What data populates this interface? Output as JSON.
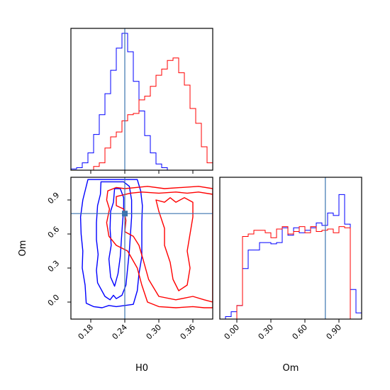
{
  "chart_data": {
    "type": "corner",
    "parameters": [
      "H0",
      "Om"
    ],
    "truth": {
      "H0": 0.24,
      "Om": 0.78,
      "color": "#3b75af"
    },
    "series": [
      {
        "color": "#0000ff"
      },
      {
        "color": "#ff0000"
      }
    ],
    "panels": {
      "hist_H0": {
        "type": "histogram",
        "xlim": [
          0.145,
          0.395
        ],
        "xticks": [
          0.18,
          0.24,
          0.3,
          0.36
        ],
        "ylim": [
          0,
          1.15
        ],
        "bin_edges": [
          0.145,
          0.155,
          0.165,
          0.175,
          0.185,
          0.195,
          0.205,
          0.215,
          0.225,
          0.235,
          0.245,
          0.255,
          0.265,
          0.275,
          0.285,
          0.295,
          0.305,
          0.315,
          0.325,
          0.335,
          0.345,
          0.355,
          0.365,
          0.375,
          0.385,
          0.395
        ],
        "counts": [
          [
            0.01,
            0.02,
            0.06,
            0.14,
            0.29,
            0.45,
            0.62,
            0.81,
            0.99,
            1.11,
            0.96,
            0.72,
            0.48,
            0.28,
            0.14,
            0.05,
            0.02,
            0,
            0,
            0,
            0,
            0,
            0,
            0,
            0
          ],
          [
            0,
            0,
            0,
            0,
            0.03,
            0.06,
            0.18,
            0.27,
            0.31,
            0.4,
            0.45,
            0.46,
            0.57,
            0.6,
            0.68,
            0.77,
            0.82,
            0.89,
            0.91,
            0.79,
            0.69,
            0.5,
            0.38,
            0.19,
            0.06
          ]
        ]
      },
      "hist_Om": {
        "type": "histogram",
        "xlim": [
          -0.15,
          1.1
        ],
        "xticks": [
          0.0,
          0.3,
          0.6,
          0.9
        ],
        "ylim": [
          0,
          1.15
        ],
        "bin_edges": [
          -0.15,
          -0.1,
          -0.05,
          0.0,
          0.05,
          0.1,
          0.15,
          0.2,
          0.25,
          0.3,
          0.35,
          0.4,
          0.45,
          0.5,
          0.55,
          0.6,
          0.65,
          0.7,
          0.75,
          0.8,
          0.85,
          0.9,
          0.95,
          1.0,
          1.05,
          1.1
        ],
        "counts": [
          [
            0,
            0.02,
            0.06,
            0.11,
            0.41,
            0.56,
            0.56,
            0.62,
            0.62,
            0.61,
            0.62,
            0.74,
            0.68,
            0.74,
            0.7,
            0.72,
            0.74,
            0.78,
            0.76,
            0.86,
            0.84,
            1.01,
            0.77,
            0.24,
            0.05
          ],
          [
            0,
            0,
            0,
            0.11,
            0.67,
            0.69,
            0.72,
            0.72,
            0.7,
            0.66,
            0.73,
            0.75,
            0.69,
            0.71,
            0.75,
            0.7,
            0.75,
            0.71,
            0.72,
            0.73,
            0.7,
            0.75,
            0.74,
            0,
            0
          ]
        ]
      },
      "contour_Om_vs_H0": {
        "type": "contour",
        "xlim": [
          0.145,
          0.395
        ],
        "ylim": [
          -0.15,
          1.1
        ],
        "xticks": [
          0.18,
          0.24,
          0.3,
          0.36
        ],
        "yticks": [
          0.0,
          0.3,
          0.6,
          0.9
        ],
        "xlabel": "H0",
        "ylabel": "Om",
        "contours": [
          {
            "series": 0,
            "points": [
              [
                0.175,
                1.08
              ],
              [
                0.171,
                1.0
              ],
              [
                0.166,
                0.9
              ],
              [
                0.162,
                0.75
              ],
              [
                0.163,
                0.6
              ],
              [
                0.166,
                0.45
              ],
              [
                0.165,
                0.3
              ],
              [
                0.17,
                0.15
              ],
              [
                0.172,
                -0.01
              ],
              [
                0.185,
                -0.04
              ],
              [
                0.2,
                -0.05
              ],
              [
                0.212,
                -0.03
              ],
              [
                0.225,
                -0.04
              ],
              [
                0.24,
                -0.03
              ],
              [
                0.255,
                -0.02
              ],
              [
                0.262,
                0.1
              ],
              [
                0.265,
                0.25
              ],
              [
                0.27,
                0.4
              ],
              [
                0.27,
                0.55
              ],
              [
                0.27,
                0.7
              ],
              [
                0.271,
                0.85
              ],
              [
                0.268,
                0.98
              ],
              [
                0.262,
                1.08
              ]
            ]
          },
          {
            "series": 0,
            "points": [
              [
                0.198,
                1.06
              ],
              [
                0.197,
                0.95
              ],
              [
                0.192,
                0.85
              ],
              [
                0.19,
                0.7
              ],
              [
                0.19,
                0.55
              ],
              [
                0.193,
                0.42
              ],
              [
                0.19,
                0.28
              ],
              [
                0.192,
                0.17
              ],
              [
                0.205,
                0.05
              ],
              [
                0.214,
                0.02
              ],
              [
                0.22,
                0.06
              ],
              [
                0.225,
                0.03
              ],
              [
                0.235,
                0.06
              ],
              [
                0.242,
                0.15
              ],
              [
                0.245,
                0.3
              ],
              [
                0.248,
                0.45
              ],
              [
                0.25,
                0.6
              ],
              [
                0.252,
                0.75
              ],
              [
                0.252,
                0.9
              ],
              [
                0.248,
                1.02
              ],
              [
                0.238,
                1.06
              ]
            ]
          },
          {
            "series": 0,
            "points": [
              [
                0.222,
                1.0
              ],
              [
                0.22,
                0.88
              ],
              [
                0.215,
                0.8
              ],
              [
                0.214,
                0.65
              ],
              [
                0.216,
                0.5
              ],
              [
                0.212,
                0.38
              ],
              [
                0.215,
                0.22
              ],
              [
                0.222,
                0.14
              ],
              [
                0.228,
                0.25
              ],
              [
                0.232,
                0.4
              ],
              [
                0.234,
                0.55
              ],
              [
                0.236,
                0.7
              ],
              [
                0.238,
                0.82
              ],
              [
                0.238,
                0.92
              ],
              [
                0.232,
                1.0
              ]
            ]
          },
          {
            "series": 1,
            "points": [
              [
                0.21,
                0.98
              ],
              [
                0.208,
                0.9
              ],
              [
                0.213,
                0.82
              ],
              [
                0.208,
                0.7
              ],
              [
                0.212,
                0.58
              ],
              [
                0.225,
                0.5
              ],
              [
                0.245,
                0.45
              ],
              [
                0.262,
                0.3
              ],
              [
                0.27,
                0.15
              ],
              [
                0.28,
                0.0
              ],
              [
                0.3,
                -0.04
              ],
              [
                0.33,
                -0.05
              ],
              [
                0.36,
                -0.04
              ],
              [
                0.38,
                -0.05
              ],
              [
                0.395,
                -0.05
              ],
              [
                0.395,
                1.0
              ],
              [
                0.37,
                1.02
              ],
              [
                0.34,
                1.01
              ],
              [
                0.31,
                1.0
              ],
              [
                0.28,
                1.02
              ],
              [
                0.26,
                1.01
              ],
              [
                0.24,
                1.0
              ],
              [
                0.225,
                1.01
              ]
            ]
          },
          {
            "series": 1,
            "points": [
              [
                0.225,
                0.93
              ],
              [
                0.225,
                0.85
              ],
              [
                0.238,
                0.82
              ],
              [
                0.242,
                0.72
              ],
              [
                0.24,
                0.62
              ],
              [
                0.255,
                0.58
              ],
              [
                0.265,
                0.5
              ],
              [
                0.272,
                0.38
              ],
              [
                0.282,
                0.2
              ],
              [
                0.3,
                0.05
              ],
              [
                0.33,
                0.02
              ],
              [
                0.36,
                0.05
              ],
              [
                0.38,
                0.02
              ],
              [
                0.395,
                0.0
              ],
              [
                0.395,
                0.95
              ],
              [
                0.37,
                0.97
              ],
              [
                0.35,
                0.96
              ],
              [
                0.33,
                0.97
              ],
              [
                0.3,
                0.96
              ],
              [
                0.27,
                0.97
              ],
              [
                0.25,
                0.96
              ]
            ]
          },
          {
            "series": 1,
            "points": [
              [
                0.295,
                0.9
              ],
              [
                0.3,
                0.8
              ],
              [
                0.31,
                0.65
              ],
              [
                0.31,
                0.5
              ],
              [
                0.32,
                0.35
              ],
              [
                0.325,
                0.2
              ],
              [
                0.335,
                0.1
              ],
              [
                0.35,
                0.15
              ],
              [
                0.355,
                0.3
              ],
              [
                0.35,
                0.45
              ],
              [
                0.355,
                0.6
              ],
              [
                0.36,
                0.75
              ],
              [
                0.36,
                0.88
              ],
              [
                0.345,
                0.92
              ],
              [
                0.33,
                0.88
              ],
              [
                0.32,
                0.92
              ],
              [
                0.31,
                0.88
              ]
            ]
          }
        ]
      }
    }
  }
}
